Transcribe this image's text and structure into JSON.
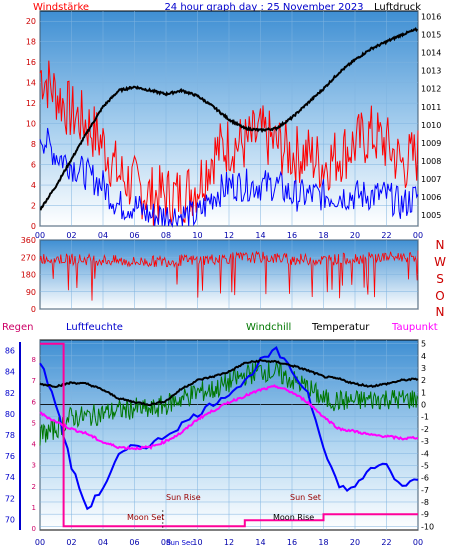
{
  "header": {
    "left_title": "Windstärke",
    "center_title": "24 hour graph day : 25 November 2023",
    "right_title": "Luftdruck",
    "colors": {
      "left_title": "#ff0000",
      "center_title": "#0000cc",
      "right_title": "#000000"
    }
  },
  "middle": {
    "direction_labels": [
      "N",
      "W",
      "S",
      "O",
      "N"
    ],
    "direction_color": "#cc0000"
  },
  "bottom_header": {
    "regen": "Regen",
    "luftfeuchte": "Luftfeuchte",
    "windchill": "Windchill",
    "temperatur": "Temperatur",
    "taupunkt": "Taupunkt",
    "colors": {
      "regen": "#cc0066",
      "luftfeuchte": "#0000cc",
      "windchill": "#007700",
      "temperatur": "#000000",
      "taupunkt": "#ff00ff"
    }
  },
  "astro": {
    "sun_rise": "Sun Rise",
    "sun_set": "Sun Set",
    "moon_set": "Moon Set",
    "moon_rise": "Moon Rise",
    "sun_sec": "Sun Sec",
    "color": "#990000",
    "moon_color": "#000000"
  },
  "chart_data": [
    {
      "type": "line",
      "title": "24 hour graph day : 25 November 2023",
      "x_ticks": [
        "00",
        "02",
        "04",
        "06",
        "08",
        "10",
        "12",
        "14",
        "16",
        "18",
        "20",
        "22",
        "00"
      ],
      "left_axis": {
        "label": "Windstärke",
        "ticks": [
          0,
          2,
          4,
          6,
          8,
          10,
          12,
          14,
          16,
          18,
          20
        ],
        "ylim": [
          0,
          21
        ]
      },
      "right_axis": {
        "label": "Luftdruck",
        "ticks": [
          1005,
          1006,
          1007,
          1008,
          1009,
          1010,
          1011,
          1012,
          1013,
          1014,
          1015,
          1016
        ],
        "ylim": [
          1004.4,
          1016.3
        ]
      },
      "series": [
        {
          "name": "Windstärke",
          "color": "#ff0000",
          "axis": "left",
          "x": [
            0,
            1,
            2,
            3,
            4,
            5,
            6,
            7,
            8,
            9,
            10,
            11,
            12,
            13,
            14,
            15,
            16,
            17,
            18,
            19,
            20,
            21,
            22,
            23,
            24
          ],
          "values": [
            15,
            13,
            11,
            10,
            8,
            5,
            4,
            3,
            3,
            3,
            4,
            7,
            8,
            8,
            9,
            8,
            7,
            7,
            6,
            7,
            8,
            9,
            8,
            6,
            7
          ]
        },
        {
          "name": "Wind",
          "color": "#0000ff",
          "axis": "left",
          "x": [
            0,
            1,
            2,
            3,
            4,
            5,
            6,
            7,
            8,
            9,
            10,
            11,
            12,
            13,
            14,
            15,
            16,
            17,
            18,
            19,
            20,
            21,
            22,
            23,
            24
          ],
          "values": [
            9,
            7,
            6,
            5,
            4,
            2,
            2,
            1,
            1,
            1,
            1,
            3,
            4,
            4,
            4,
            4,
            3,
            3,
            3,
            3,
            3,
            3,
            3,
            2,
            3
          ]
        },
        {
          "name": "Luftdruck",
          "color": "#000000",
          "axis": "right",
          "x": [
            0,
            1,
            2,
            3,
            4,
            5,
            6,
            7,
            8,
            9,
            10,
            11,
            12,
            13,
            14,
            15,
            16,
            17,
            18,
            19,
            20,
            21,
            22,
            23,
            24
          ],
          "values": [
            1005.3,
            1006.6,
            1008.1,
            1009.6,
            1011.0,
            1011.9,
            1012.1,
            1011.9,
            1011.7,
            1011.9,
            1011.6,
            1011.0,
            1010.3,
            1009.8,
            1009.7,
            1009.8,
            1010.4,
            1011.2,
            1012.0,
            1012.9,
            1013.6,
            1014.2,
            1014.6,
            1015.0,
            1015.3
          ]
        }
      ]
    },
    {
      "type": "line",
      "title": "",
      "x_ticks": [
        "00",
        "02",
        "04",
        "06",
        "08",
        "10",
        "12",
        "14",
        "16",
        "18",
        "20",
        "22",
        "00"
      ],
      "left_axis": {
        "ticks": [
          0,
          90,
          180,
          270,
          360
        ],
        "ylim": [
          0,
          360
        ]
      },
      "series": [
        {
          "name": "Windrichtung",
          "color": "#ff0000",
          "x": [
            0,
            2,
            4,
            6,
            8,
            10,
            12,
            14,
            16,
            18,
            20,
            22,
            24
          ],
          "values": [
            265,
            260,
            255,
            245,
            250,
            255,
            265,
            270,
            260,
            255,
            265,
            270,
            275
          ]
        }
      ]
    },
    {
      "type": "line",
      "title": "",
      "x_ticks": [
        "00",
        "02",
        "04",
        "06",
        "08",
        "10",
        "12",
        "14",
        "16",
        "18",
        "20",
        "22",
        "00"
      ],
      "left_axis": {
        "label": "Luftfeuchte",
        "ticks": [
          70,
          72,
          74,
          76,
          78,
          80,
          82,
          84,
          86
        ],
        "ylim": [
          69,
          87
        ]
      },
      "right_axis": {
        "label": "Temperatur",
        "ticks": [
          -10,
          -9,
          -8,
          -7,
          -6,
          -5,
          -4,
          -3,
          -2,
          -1,
          0,
          1,
          2,
          3,
          4,
          5
        ],
        "ylim": [
          -10.3,
          5.3
        ]
      },
      "series": [
        {
          "name": "Luftfeuchte",
          "color": "#0000ff",
          "axis": "left",
          "x": [
            0,
            1,
            2,
            3,
            4,
            5,
            6,
            7,
            8,
            9,
            10,
            11,
            12,
            13,
            14,
            15,
            16,
            17,
            18,
            19,
            20,
            21,
            22,
            23,
            24
          ],
          "values": [
            85,
            81,
            75,
            71,
            73,
            76,
            77,
            77,
            78,
            79,
            80,
            81,
            82,
            83,
            85,
            86,
            84,
            82,
            77,
            73,
            73,
            75,
            75,
            73,
            74
          ]
        },
        {
          "name": "Temperatur",
          "color": "#000000",
          "axis": "right",
          "x": [
            0,
            1,
            2,
            3,
            4,
            5,
            6,
            7,
            8,
            9,
            10,
            11,
            12,
            13,
            14,
            15,
            16,
            17,
            18,
            19,
            20,
            21,
            22,
            23,
            24
          ],
          "values": [
            1.7,
            1.5,
            1.8,
            1.7,
            1.2,
            0.5,
            0.2,
            0.0,
            0.3,
            1.3,
            2.0,
            2.3,
            2.7,
            3.4,
            3.6,
            3.5,
            3.2,
            2.8,
            2.3,
            2.1,
            1.7,
            1.5,
            1.7,
            2.0,
            2.1
          ]
        },
        {
          "name": "Windchill",
          "color": "#007700",
          "axis": "right",
          "x": [
            0,
            1,
            2,
            3,
            4,
            5,
            6,
            7,
            8,
            9,
            10,
            11,
            12,
            13,
            14,
            15,
            16,
            17,
            18,
            19,
            20,
            21,
            22,
            23,
            24
          ],
          "values": [
            -2.5,
            -2.0,
            -1.0,
            -1.0,
            -0.7,
            -0.5,
            -0.3,
            -0.5,
            0.0,
            0.5,
            1.0,
            1.2,
            1.8,
            2.4,
            2.8,
            2.6,
            2.0,
            1.4,
            0.4,
            0.3,
            0.3,
            0.4,
            0.5,
            0.4,
            0.5
          ]
        },
        {
          "name": "Taupunkt",
          "color": "#ff00ff",
          "axis": "right",
          "x": [
            0,
            1,
            2,
            3,
            4,
            5,
            6,
            7,
            8,
            9,
            10,
            11,
            12,
            13,
            14,
            15,
            16,
            17,
            18,
            19,
            20,
            21,
            22,
            23,
            24
          ],
          "values": [
            -0.7,
            -1.4,
            -2.0,
            -2.4,
            -3.1,
            -3.5,
            -3.6,
            -3.5,
            -3.0,
            -2.3,
            -1.2,
            -0.5,
            0.2,
            0.7,
            1.2,
            1.5,
            1.0,
            0.2,
            -1.0,
            -2.0,
            -2.2,
            -2.5,
            -2.6,
            -2.8,
            -2.7
          ]
        },
        {
          "name": "Regen",
          "color": "#ff0099",
          "axis": "right",
          "x": [
            0,
            1.5,
            1.5,
            13,
            13,
            18,
            18,
            24
          ],
          "values": [
            5,
            5,
            -10,
            -10,
            -9.5,
            -9.5,
            -9.0,
            -9.0
          ]
        }
      ]
    }
  ]
}
